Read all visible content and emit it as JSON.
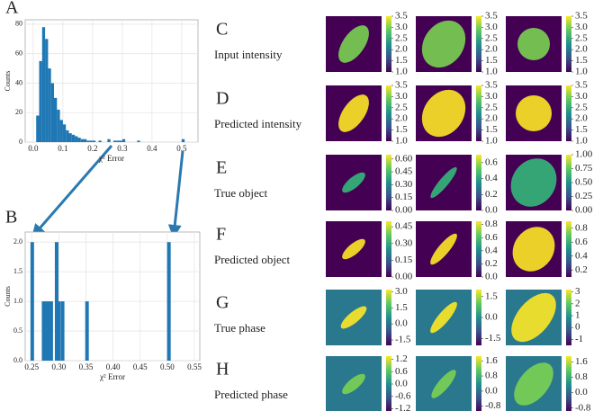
{
  "chart_data": [
    {
      "type": "histogram",
      "panel": "A",
      "x_label": "χ² Error",
      "y_label": "Counts",
      "color": "#1f77b4",
      "grid": true,
      "bins": [
        0,
        0.01,
        0.02,
        0.03,
        0.04,
        0.05,
        0.06,
        0.07,
        0.08,
        0.09,
        0.1,
        0.11,
        0.12,
        0.13,
        0.14,
        0.15,
        0.16,
        0.17,
        0.18,
        0.19,
        0.2,
        0.21,
        0.22,
        0.23,
        0.24,
        0.25,
        0.26,
        0.27,
        0.28,
        0.29,
        0.3,
        0.31,
        0.32,
        0.33,
        0.34,
        0.35,
        0.36,
        0.37,
        0.38,
        0.39,
        0.4,
        0.41,
        0.42,
        0.43,
        0.44,
        0.45,
        0.46,
        0.47,
        0.48,
        0.49,
        0.5,
        0.51,
        0.52
      ],
      "values": [
        0,
        18,
        55,
        78,
        70,
        50,
        40,
        30,
        22,
        15,
        12,
        8,
        6,
        5,
        4,
        3,
        2,
        2,
        1,
        1,
        1,
        0,
        1,
        0,
        0,
        2,
        0,
        1,
        1,
        1,
        2,
        0,
        0,
        0,
        0,
        1,
        0,
        0,
        0,
        0,
        0,
        0,
        0,
        0,
        0,
        0,
        0,
        0,
        0,
        0,
        2,
        0
      ],
      "xlim": [
        -0.027,
        0.555
      ],
      "ylim": [
        0,
        83
      ],
      "xticks": [
        {
          "value": 0,
          "label": "0.0"
        },
        0.1,
        0.2,
        0.3,
        0.4,
        0.5
      ],
      "yticks": [
        0,
        20,
        40,
        60,
        80
      ]
    },
    {
      "type": "bar",
      "panel": "B",
      "x_label": "χ² Error",
      "y_label": "Counts",
      "color": "#1f77b4",
      "grid": true,
      "x": [
        0.251,
        0.272,
        0.276,
        0.282,
        0.286,
        0.296,
        0.3,
        0.307,
        0.352,
        0.503
      ],
      "values": [
        2,
        1,
        1,
        1,
        1,
        2,
        1,
        1,
        1,
        2
      ],
      "xlim": [
        0.238,
        0.56
      ],
      "ylim": [
        0,
        2.17
      ],
      "xticks": [
        0.25,
        {
          "value": 0.3,
          "label": "0.30"
        },
        0.35,
        {
          "value": 0.4,
          "label": "0.40"
        },
        0.45,
        {
          "value": 0.5,
          "label": "0.50"
        },
        0.55
      ],
      "yticks": [
        {
          "value": 0,
          "label": "0.0"
        },
        0.5,
        {
          "value": 1,
          "label": "1.0"
        },
        1.5,
        {
          "value": 2,
          "label": "2.0"
        }
      ]
    }
  ],
  "image_grid": {
    "rows": [
      {
        "letter": "C",
        "label": "Input intensity",
        "colorbars": [
          {
            "lim": [
              1,
              3.5
            ],
            "ticks": [
              3.5,
              {
                "value": 3,
                "label": "3.0"
              },
              2.5,
              {
                "value": 2,
                "label": "2.0"
              },
              1.5,
              {
                "value": 1,
                "label": "1.0"
              }
            ]
          },
          {
            "lim": [
              1,
              3.5
            ],
            "ticks": [
              3.5,
              {
                "value": 3,
                "label": "3.0"
              },
              2.5,
              {
                "value": 2,
                "label": "2.0"
              },
              1.5,
              {
                "value": 1,
                "label": "1.0"
              }
            ]
          },
          {
            "lim": [
              1,
              3.5
            ],
            "ticks": [
              3.5,
              {
                "value": 3,
                "label": "3.0"
              },
              2.5,
              {
                "value": 2,
                "label": "2.0"
              },
              1.5,
              {
                "value": 1,
                "label": "1.0"
              }
            ]
          }
        ]
      },
      {
        "letter": "D",
        "label": "Predicted intensity",
        "colorbars": [
          {
            "lim": [
              1,
              3.5
            ],
            "ticks": [
              3.5,
              {
                "value": 3,
                "label": "3.0"
              },
              2.5,
              {
                "value": 2,
                "label": "2.0"
              },
              1.5,
              {
                "value": 1,
                "label": "1.0"
              }
            ]
          },
          {
            "lim": [
              1,
              3.5
            ],
            "ticks": [
              3.5,
              {
                "value": 3,
                "label": "3.0"
              },
              2.5,
              {
                "value": 2,
                "label": "2.0"
              },
              1.5,
              {
                "value": 1,
                "label": "1.0"
              }
            ]
          },
          {
            "lim": [
              1,
              3.5
            ],
            "ticks": [
              3.5,
              {
                "value": 3,
                "label": "3.0"
              },
              2.5,
              {
                "value": 2,
                "label": "2.0"
              },
              1.5,
              {
                "value": 1,
                "label": "1.0"
              }
            ]
          }
        ]
      },
      {
        "letter": "E",
        "label": "True object",
        "colorbars": [
          {
            "lim": [
              0,
              0.65
            ],
            "ticks": [
              {
                "value": 0.6,
                "label": "0.60"
              },
              0.45,
              {
                "value": 0.3,
                "label": "0.30"
              },
              0.15,
              {
                "value": 0,
                "label": "0.00"
              }
            ]
          },
          {
            "lim": [
              0,
              0.7
            ],
            "ticks": [
              0.6,
              0.4,
              0.2,
              {
                "value": 0,
                "label": "0.0"
              }
            ]
          },
          {
            "lim": [
              0,
              1
            ],
            "ticks": [
              {
                "value": 1,
                "label": "1.00"
              },
              0.75,
              {
                "value": 0.5,
                "label": "0.50"
              },
              0.25,
              {
                "value": 0,
                "label": "0.00"
              }
            ]
          }
        ]
      },
      {
        "letter": "F",
        "label": "Predicted object",
        "colorbars": [
          {
            "lim": [
              0,
              0.5
            ],
            "ticks": [
              0.45,
              {
                "value": 0.3,
                "label": "0.30"
              },
              0.15,
              {
                "value": 0,
                "label": "0.00"
              }
            ]
          },
          {
            "lim": [
              0,
              0.85
            ],
            "ticks": [
              0.8,
              0.6,
              0.4,
              0.2,
              {
                "value": 0,
                "label": "0.0"
              }
            ]
          },
          {
            "lim": [
              0.1,
              0.9
            ],
            "ticks": [
              0.8,
              0.6,
              0.4,
              0.2
            ]
          }
        ]
      },
      {
        "letter": "G",
        "label": "True phase",
        "colorbars": [
          {
            "lim": [
              -2,
              3.2
            ],
            "ticks": [
              {
                "value": 3,
                "label": "3.0"
              },
              1.5,
              {
                "value": 0,
                "label": "0.0"
              },
              -1.5
            ]
          },
          {
            "lim": [
              -2,
              2
            ],
            "ticks": [
              1.5,
              {
                "value": 0,
                "label": "0.0"
              },
              -1.5
            ]
          },
          {
            "lim": [
              -1.5,
              3.2
            ],
            "ticks": [
              3,
              2,
              1,
              0,
              -1
            ]
          }
        ]
      },
      {
        "letter": "H",
        "label": "Predicted phase",
        "colorbars": [
          {
            "lim": [
              -1.35,
              1.35
            ],
            "ticks": [
              1.2,
              0.6,
              {
                "value": 0,
                "label": "0.0"
              },
              -0.6,
              -1.2
            ]
          },
          {
            "lim": [
              -1.1,
              1.85
            ],
            "ticks": [
              1.6,
              0.8,
              {
                "value": 0,
                "label": "0.0"
              },
              -0.8
            ]
          },
          {
            "lim": [
              -1.0,
              1.9
            ],
            "ticks": [
              1.6,
              0.8,
              {
                "value": 0,
                "label": "0.0"
              },
              -0.8
            ]
          }
        ]
      }
    ]
  }
}
